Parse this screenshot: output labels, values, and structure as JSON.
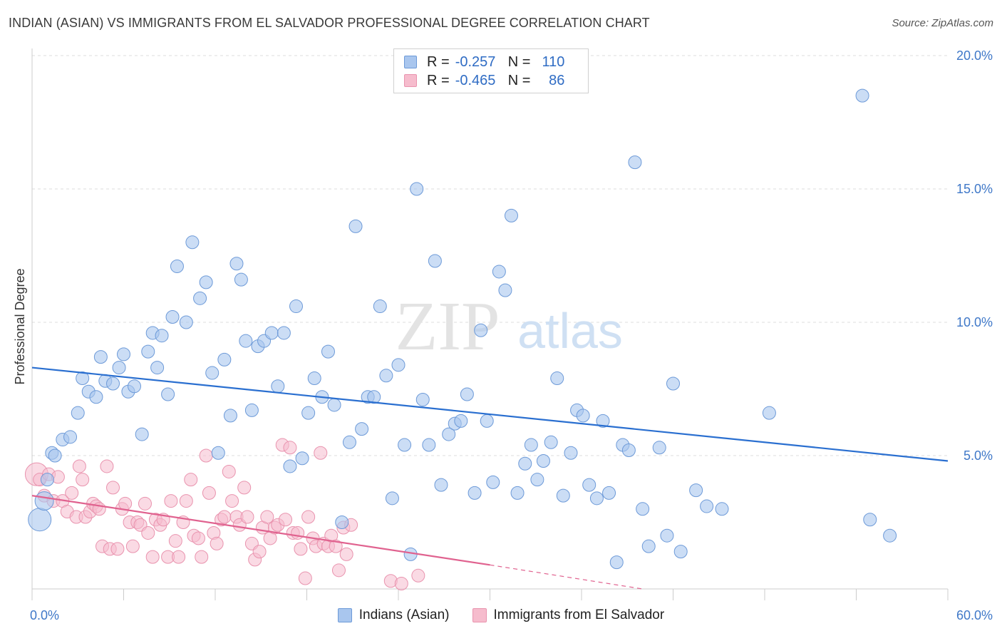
{
  "header": {
    "title": "INDIAN (ASIAN) VS IMMIGRANTS FROM EL SALVADOR PROFESSIONAL DEGREE CORRELATION CHART",
    "source": "Source: ZipAtlas.com"
  },
  "legend": {
    "r_label": "R =",
    "n_label": "N =",
    "rows": [
      {
        "r": "-0.257",
        "n": "110"
      },
      {
        "r": "-0.465",
        "n": "86"
      }
    ]
  },
  "watermark": {
    "zip": "ZIP",
    "atlas": "atlas"
  },
  "colors": {
    "blue_fill": "#a9c6ee",
    "blue_stroke": "#6d9ad8",
    "blue_line": "#2a6fd0",
    "pink_fill": "#f6bccd",
    "pink_stroke": "#e993ae",
    "pink_line": "#e0628f",
    "tick_label": "#3f78c8",
    "grid": "#dcdcdc"
  },
  "chart_data": {
    "type": "scatter",
    "title": "INDIAN (ASIAN) VS IMMIGRANTS FROM EL SALVADOR PROFESSIONAL DEGREE CORRELATION CHART",
    "ylabel": "Professional Degree",
    "xlabel": "",
    "xlim": [
      0,
      60
    ],
    "ylim": [
      0,
      20
    ],
    "x_tick_labels": [
      "0.0%",
      "60.0%"
    ],
    "y_ticks": [
      5,
      10,
      15,
      20
    ],
    "y_tick_labels": [
      "5.0%",
      "10.0%",
      "15.0%",
      "20.0%"
    ],
    "grid": true,
    "legend_position": "top-center",
    "series": [
      {
        "name": "Indians (Asian)",
        "color": "#a9c6ee",
        "trend": {
          "x": [
            0,
            60
          ],
          "y": [
            8.3,
            4.8
          ]
        },
        "points": [
          [
            0.5,
            2.6
          ],
          [
            0.8,
            3.3
          ],
          [
            1.0,
            4.1
          ],
          [
            1.3,
            5.1
          ],
          [
            1.5,
            5.0
          ],
          [
            2.0,
            5.6
          ],
          [
            2.5,
            5.7
          ],
          [
            3.0,
            6.6
          ],
          [
            3.3,
            7.9
          ],
          [
            3.7,
            7.4
          ],
          [
            4.2,
            7.2
          ],
          [
            4.5,
            8.7
          ],
          [
            4.8,
            7.8
          ],
          [
            5.3,
            7.7
          ],
          [
            5.7,
            8.3
          ],
          [
            6.0,
            8.8
          ],
          [
            6.3,
            7.4
          ],
          [
            6.7,
            7.6
          ],
          [
            7.2,
            5.8
          ],
          [
            7.6,
            8.9
          ],
          [
            7.9,
            9.6
          ],
          [
            8.2,
            8.3
          ],
          [
            8.5,
            9.5
          ],
          [
            8.9,
            7.3
          ],
          [
            9.2,
            10.2
          ],
          [
            9.5,
            12.1
          ],
          [
            10.1,
            10.0
          ],
          [
            10.5,
            13.0
          ],
          [
            11.0,
            10.9
          ],
          [
            11.4,
            11.5
          ],
          [
            11.8,
            8.1
          ],
          [
            12.2,
            5.1
          ],
          [
            12.6,
            8.6
          ],
          [
            13.0,
            6.5
          ],
          [
            13.4,
            12.2
          ],
          [
            13.7,
            11.6
          ],
          [
            14.0,
            9.3
          ],
          [
            14.4,
            6.7
          ],
          [
            14.8,
            9.1
          ],
          [
            15.2,
            9.3
          ],
          [
            15.7,
            9.6
          ],
          [
            16.1,
            7.6
          ],
          [
            16.5,
            9.6
          ],
          [
            16.9,
            4.6
          ],
          [
            17.3,
            10.6
          ],
          [
            17.7,
            4.9
          ],
          [
            18.1,
            6.6
          ],
          [
            18.5,
            7.9
          ],
          [
            19.0,
            7.2
          ],
          [
            19.4,
            8.9
          ],
          [
            19.8,
            6.9
          ],
          [
            20.3,
            2.5
          ],
          [
            20.8,
            5.5
          ],
          [
            21.2,
            13.6
          ],
          [
            21.6,
            6.0
          ],
          [
            22.0,
            7.2
          ],
          [
            22.4,
            7.2
          ],
          [
            22.8,
            10.6
          ],
          [
            23.2,
            8.0
          ],
          [
            23.6,
            3.4
          ],
          [
            24.0,
            8.4
          ],
          [
            24.4,
            5.4
          ],
          [
            24.8,
            1.3
          ],
          [
            25.2,
            15.0
          ],
          [
            25.6,
            7.1
          ],
          [
            26.0,
            5.4
          ],
          [
            26.4,
            12.3
          ],
          [
            26.8,
            3.9
          ],
          [
            27.3,
            5.8
          ],
          [
            27.7,
            6.2
          ],
          [
            28.1,
            6.3
          ],
          [
            28.5,
            7.3
          ],
          [
            29.0,
            3.6
          ],
          [
            29.4,
            9.7
          ],
          [
            29.8,
            6.3
          ],
          [
            30.2,
            4.0
          ],
          [
            30.6,
            11.9
          ],
          [
            31.0,
            11.2
          ],
          [
            31.4,
            14.0
          ],
          [
            31.8,
            3.6
          ],
          [
            32.3,
            4.7
          ],
          [
            32.7,
            5.4
          ],
          [
            33.1,
            4.1
          ],
          [
            33.5,
            4.8
          ],
          [
            34.0,
            5.5
          ],
          [
            34.4,
            7.9
          ],
          [
            34.8,
            3.5
          ],
          [
            35.3,
            5.1
          ],
          [
            35.7,
            6.7
          ],
          [
            36.1,
            6.5
          ],
          [
            36.5,
            3.9
          ],
          [
            37.0,
            3.4
          ],
          [
            37.4,
            6.3
          ],
          [
            37.8,
            3.6
          ],
          [
            38.3,
            1.0
          ],
          [
            38.7,
            5.4
          ],
          [
            39.1,
            5.2
          ],
          [
            39.5,
            16.0
          ],
          [
            40.0,
            3.0
          ],
          [
            40.4,
            1.6
          ],
          [
            41.1,
            5.3
          ],
          [
            41.6,
            2.0
          ],
          [
            42.0,
            7.7
          ],
          [
            42.5,
            1.4
          ],
          [
            43.5,
            3.7
          ],
          [
            44.2,
            3.1
          ],
          [
            45.2,
            3.0
          ],
          [
            48.3,
            6.6
          ],
          [
            56.2,
            2.0
          ],
          [
            54.9,
            2.6
          ],
          [
            54.4,
            18.5
          ]
        ]
      },
      {
        "name": "Immigrants from El Salvador",
        "color": "#f6bccd",
        "trend": {
          "x": [
            0,
            30
          ],
          "y": [
            3.5,
            0.9
          ]
        },
        "trend_extension": {
          "x": [
            30,
            40
          ],
          "y": [
            0.9,
            0.0
          ]
        },
        "points": [
          [
            0.3,
            4.3
          ],
          [
            0.5,
            4.1
          ],
          [
            0.8,
            3.5
          ],
          [
            1.1,
            4.3
          ],
          [
            1.4,
            3.3
          ],
          [
            1.7,
            4.2
          ],
          [
            2.0,
            3.3
          ],
          [
            2.3,
            2.9
          ],
          [
            2.6,
            3.6
          ],
          [
            2.9,
            2.7
          ],
          [
            3.1,
            4.6
          ],
          [
            3.3,
            4.1
          ],
          [
            3.5,
            2.7
          ],
          [
            3.8,
            2.9
          ],
          [
            4.0,
            3.2
          ],
          [
            4.2,
            3.1
          ],
          [
            4.4,
            3.0
          ],
          [
            4.6,
            1.6
          ],
          [
            4.9,
            4.6
          ],
          [
            5.1,
            1.5
          ],
          [
            5.3,
            3.8
          ],
          [
            5.6,
            1.5
          ],
          [
            5.9,
            3.0
          ],
          [
            6.1,
            3.2
          ],
          [
            6.4,
            2.5
          ],
          [
            6.6,
            1.6
          ],
          [
            6.9,
            2.5
          ],
          [
            7.1,
            2.4
          ],
          [
            7.4,
            3.2
          ],
          [
            7.6,
            2.1
          ],
          [
            7.9,
            1.2
          ],
          [
            8.1,
            2.6
          ],
          [
            8.4,
            2.4
          ],
          [
            8.6,
            2.6
          ],
          [
            8.9,
            1.2
          ],
          [
            9.1,
            3.3
          ],
          [
            9.4,
            1.8
          ],
          [
            9.6,
            1.2
          ],
          [
            9.9,
            2.5
          ],
          [
            10.1,
            3.3
          ],
          [
            10.4,
            4.1
          ],
          [
            10.6,
            2.0
          ],
          [
            10.9,
            1.9
          ],
          [
            11.1,
            1.2
          ],
          [
            11.4,
            5.0
          ],
          [
            11.6,
            3.6
          ],
          [
            11.9,
            2.1
          ],
          [
            12.1,
            1.7
          ],
          [
            12.4,
            2.6
          ],
          [
            12.6,
            2.7
          ],
          [
            12.9,
            4.4
          ],
          [
            13.1,
            3.3
          ],
          [
            13.4,
            2.7
          ],
          [
            13.6,
            2.4
          ],
          [
            13.9,
            3.8
          ],
          [
            14.1,
            2.7
          ],
          [
            14.4,
            1.7
          ],
          [
            14.6,
            1.1
          ],
          [
            14.9,
            1.4
          ],
          [
            15.1,
            2.3
          ],
          [
            15.4,
            2.7
          ],
          [
            15.6,
            1.9
          ],
          [
            15.9,
            2.3
          ],
          [
            16.1,
            2.4
          ],
          [
            16.4,
            5.4
          ],
          [
            16.6,
            2.6
          ],
          [
            16.9,
            5.3
          ],
          [
            17.1,
            2.1
          ],
          [
            17.4,
            2.1
          ],
          [
            17.6,
            1.5
          ],
          [
            17.9,
            0.4
          ],
          [
            18.1,
            2.7
          ],
          [
            18.4,
            1.9
          ],
          [
            18.6,
            1.6
          ],
          [
            18.9,
            5.1
          ],
          [
            19.1,
            1.7
          ],
          [
            19.4,
            1.6
          ],
          [
            19.6,
            2.0
          ],
          [
            19.9,
            1.6
          ],
          [
            20.1,
            0.7
          ],
          [
            20.4,
            2.3
          ],
          [
            20.6,
            1.3
          ],
          [
            20.9,
            2.4
          ],
          [
            23.5,
            0.3
          ],
          [
            24.2,
            0.2
          ],
          [
            25.3,
            0.5
          ]
        ]
      }
    ]
  },
  "bottom_legend": [
    {
      "label": "Indians (Asian)"
    },
    {
      "label": "Immigrants from El Salvador"
    }
  ]
}
